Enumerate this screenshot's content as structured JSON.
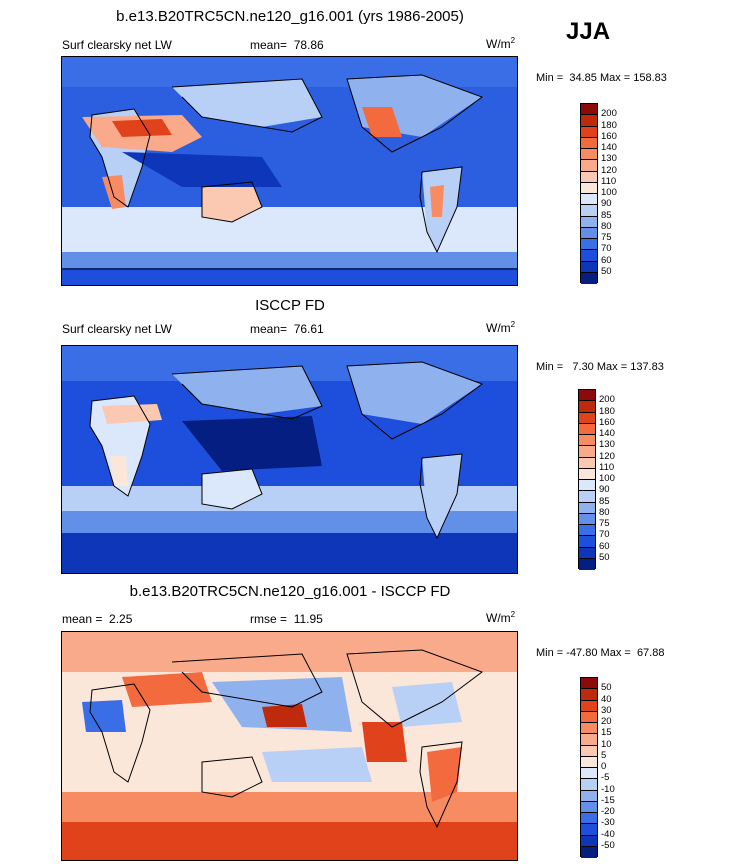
{
  "season": "JJA",
  "panels": [
    {
      "title": "b.e13.B20TRC5CN.ne120_g16.001 (yrs 1986-2005)",
      "left_label": "Surf clearsky net LW",
      "stat_label": "mean=",
      "stat_value": "78.86",
      "units": "W/m",
      "units_sup": "2",
      "min_label": "Min =",
      "min_value": "34.85",
      "max_label": "Max =",
      "max_value": "158.83",
      "levels": [
        "200",
        "180",
        "160",
        "140",
        "130",
        "120",
        "110",
        "100",
        "90",
        "85",
        "80",
        "75",
        "70",
        "60",
        "50"
      ],
      "colors": [
        "#8c0a0a",
        "#bf2a0c",
        "#e0431b",
        "#f26a3e",
        "#f78b62",
        "#f9aa8b",
        "#fbc8b2",
        "#fbe6da",
        "#dbe8fb",
        "#b8cff6",
        "#8fb2ef",
        "#6290e8",
        "#3a6ee6",
        "#1e4fdc",
        "#0d36b8",
        "#051e82"
      ]
    },
    {
      "title": "ISCCP FD",
      "left_label": "Surf clearsky net LW",
      "stat_label": "mean=",
      "stat_value": "76.61",
      "units": "W/m",
      "units_sup": "2",
      "min_label": "Min =",
      "min_value": "7.30",
      "max_label": "Max =",
      "max_value": "137.83",
      "levels": [
        "200",
        "180",
        "160",
        "140",
        "130",
        "120",
        "110",
        "100",
        "90",
        "85",
        "80",
        "75",
        "70",
        "60",
        "50"
      ],
      "colors": [
        "#8c0a0a",
        "#bf2a0c",
        "#e0431b",
        "#f26a3e",
        "#f78b62",
        "#f9aa8b",
        "#fbc8b2",
        "#fbe6da",
        "#dbe8fb",
        "#b8cff6",
        "#8fb2ef",
        "#6290e8",
        "#3a6ee6",
        "#1e4fdc",
        "#0d36b8",
        "#051e82"
      ]
    },
    {
      "title": "b.e13.B20TRC5CN.ne120_g16.001 - ISCCP FD",
      "left_label": "mean =",
      "left_value": "2.25",
      "stat_label": "rmse =",
      "stat_value": "11.95",
      "units": "W/m",
      "units_sup": "2",
      "min_label": "Min =",
      "min_value": "-47.80",
      "max_label": "Max =",
      "max_value": "67.88",
      "levels": [
        "50",
        "40",
        "30",
        "20",
        "15",
        "10",
        "5",
        "0",
        "-5",
        "-10",
        "-15",
        "-20",
        "-30",
        "-40",
        "-50"
      ],
      "colors": [
        "#8c0a0a",
        "#bf2a0c",
        "#e0431b",
        "#f26a3e",
        "#f78b62",
        "#f9aa8b",
        "#fbc8b2",
        "#fbe6da",
        "#dbe8fb",
        "#b8cff6",
        "#8fb2ef",
        "#6290e8",
        "#3a6ee6",
        "#1e4fdc",
        "#0d36b8",
        "#051e82"
      ]
    }
  ],
  "chart_data": [
    {
      "type": "heatmap",
      "title": "b.e13.B20TRC5CN.ne120_g16.001 (yrs 1986-2005)",
      "subtitle": "Surf clearsky net LW",
      "units": "W/m2",
      "mean": 78.86,
      "min": 34.85,
      "max": 158.83,
      "contour_levels": [
        50,
        60,
        70,
        75,
        80,
        85,
        90,
        100,
        110,
        120,
        130,
        140,
        160,
        180,
        200
      ],
      "colormap": "blue-white-red"
    },
    {
      "type": "heatmap",
      "title": "ISCCP FD",
      "subtitle": "Surf clearsky net LW",
      "units": "W/m2",
      "mean": 76.61,
      "min": 7.3,
      "max": 137.83,
      "contour_levels": [
        50,
        60,
        70,
        75,
        80,
        85,
        90,
        100,
        110,
        120,
        130,
        140,
        160,
        180,
        200
      ],
      "colormap": "blue-white-red"
    },
    {
      "type": "heatmap",
      "title": "b.e13.B20TRC5CN.ne120_g16.001 - ISCCP FD",
      "units": "W/m2",
      "mean": 2.25,
      "rmse": 11.95,
      "min": -47.8,
      "max": 67.88,
      "contour_levels": [
        -50,
        -40,
        -30,
        -20,
        -15,
        -10,
        -5,
        0,
        5,
        10,
        15,
        20,
        30,
        40,
        50
      ],
      "colormap": "blue-white-red"
    }
  ]
}
